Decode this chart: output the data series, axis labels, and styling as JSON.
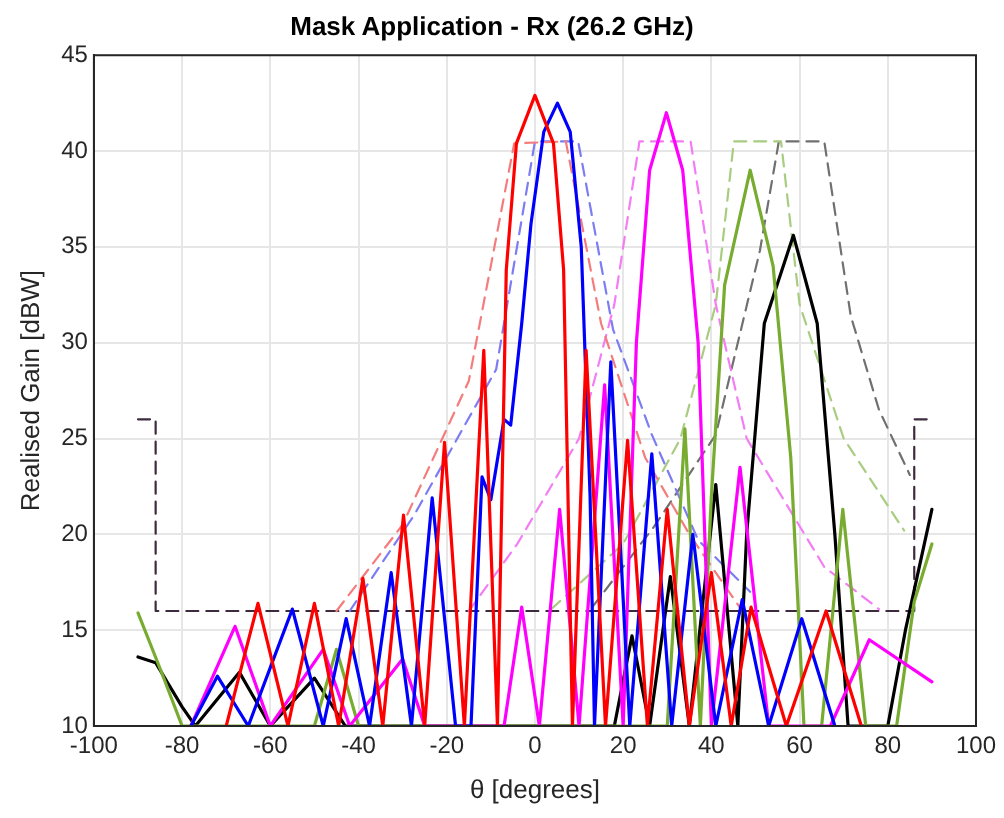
{
  "chart_data": {
    "type": "line",
    "title": "Mask Application - Rx (26.2 GHz)",
    "xlabel": "θ [degrees]",
    "ylabel": "Realised Gain [dBW]",
    "xlim": [
      -100,
      100
    ],
    "xticks": [
      -100,
      -80,
      -60,
      -40,
      -20,
      0,
      20,
      40,
      60,
      80,
      100
    ],
    "ylim": [
      10,
      45
    ],
    "yticks": [
      10,
      15,
      20,
      25,
      30,
      35,
      40,
      45
    ],
    "grid": true,
    "legend": false,
    "marker": "none",
    "series": [
      {
        "color": "#ff0000",
        "line_style": "solid",
        "x": [
          -70,
          -62.8,
          -56,
          -50,
          -44.5,
          -39,
          -34.5,
          -29.8,
          -25,
          -20.5,
          -16,
          -11.6,
          -8.5,
          -6.5,
          -4.2,
          0,
          4.2,
          6.5,
          8.5,
          11.6,
          16,
          21,
          25.5,
          30,
          35,
          40,
          44.5,
          49,
          57,
          66,
          74
        ],
        "values": [
          10,
          16.4,
          10,
          16.4,
          10,
          17.7,
          10,
          21,
          10,
          24.8,
          10,
          29.6,
          10,
          33.8,
          40.4,
          42.9,
          40.4,
          33.8,
          10,
          29.6,
          10,
          24.9,
          10,
          21.3,
          10,
          18,
          10,
          16.2,
          10,
          16,
          10
        ]
      },
      {
        "color": "#0000ff",
        "line_style": "solid",
        "x": [
          -78,
          -72,
          -65,
          -55,
          -48,
          -42.8,
          -37.5,
          -32.6,
          -28,
          -23.3,
          -18,
          -14.5,
          -12,
          -10,
          -7,
          -5.5,
          -3,
          -0.9,
          2,
          5.1,
          8,
          10.5,
          12.5,
          13.5,
          17.2,
          21.5,
          26.5,
          31,
          35.8,
          41,
          47,
          53,
          60.5,
          68
        ],
        "values": [
          10,
          12.6,
          10,
          16.1,
          10,
          15.6,
          10,
          18,
          10,
          21.9,
          10,
          10,
          23,
          21.8,
          26,
          25.7,
          31,
          36.2,
          41,
          42.5,
          41,
          35,
          22,
          10,
          29,
          10,
          24.2,
          10,
          20,
          10,
          16.6,
          10,
          15.6,
          10
        ]
      },
      {
        "color": "#ff00ff",
        "line_style": "solid",
        "x": [
          -78,
          -68,
          -60,
          -48,
          -42,
          -30,
          -25,
          -7,
          -3,
          1,
          5.6,
          10,
          15.8,
          20,
          23,
          26,
          29.8,
          33.5,
          37,
          40,
          46.5,
          53,
          67,
          75.8,
          90
        ],
        "values": [
          10,
          15.2,
          10,
          14,
          10,
          13.5,
          10,
          10,
          16.2,
          10,
          21.3,
          10,
          27.8,
          10,
          30,
          39,
          42,
          39,
          30,
          10,
          23.5,
          10,
          10,
          14.5,
          12.3
        ]
      },
      {
        "color": "#77ac30",
        "line_style": "solid",
        "x": [
          -90,
          -85,
          -80,
          -50,
          -45,
          -40,
          30,
          34,
          37.5,
          40,
          43,
          48.8,
          54,
          58,
          61,
          65,
          69.8,
          75,
          82,
          86,
          90
        ],
        "values": [
          15.9,
          13,
          10,
          10,
          14,
          10,
          10,
          25.5,
          10,
          22,
          33,
          39,
          34,
          24,
          10,
          10,
          21.3,
          10,
          10,
          16.5,
          19.5
        ]
      },
      {
        "color": "#000000",
        "line_style": "solid",
        "x": [
          -90,
          -86,
          -80,
          -77,
          -67,
          -60,
          -50,
          -43,
          18,
          22,
          26,
          30.7,
          35,
          41,
          46,
          48,
          52,
          58.6,
          64,
          68,
          71,
          80,
          84,
          90
        ],
        "values": [
          13.6,
          13.3,
          11,
          10,
          12.8,
          10,
          12.5,
          10,
          10,
          14.7,
          10,
          17.8,
          10,
          22.6,
          10,
          20,
          31,
          35.6,
          31,
          20,
          10,
          10,
          15,
          21.3
        ]
      },
      {
        "color": "#f47c7c",
        "line_style": "dashed",
        "x": [
          -45,
          -30,
          -15,
          -4.7,
          7,
          15,
          25,
          35,
          47
        ],
        "values": [
          16,
          20.5,
          28,
          40.4,
          40.5,
          31,
          24,
          20,
          16
        ]
      },
      {
        "color": "#7c7cf4",
        "line_style": "dashed",
        "x": [
          -42,
          -27.4,
          -8.8,
          0,
          9.8,
          17.7,
          26.5,
          37,
          48.8
        ],
        "values": [
          16,
          21,
          28.6,
          40.5,
          40.5,
          30.7,
          25.2,
          19.7,
          17
        ]
      },
      {
        "color": "#f47cf4",
        "line_style": "dashed",
        "x": [
          -15,
          -4,
          10,
          18,
          23.7,
          35.3,
          41,
          48,
          65.6,
          78
        ],
        "values": [
          16,
          19.5,
          25,
          32,
          40.5,
          40.5,
          32,
          25,
          18.3,
          16.1
        ]
      },
      {
        "color": "#a8cc80",
        "line_style": "dashed",
        "x": [
          3.7,
          20,
          33,
          41,
          45.1,
          55.8,
          60,
          70,
          83.7
        ],
        "values": [
          16.1,
          19.5,
          25,
          32,
          40.5,
          40.5,
          32,
          25,
          20.2
        ]
      },
      {
        "color": "#707070",
        "line_style": "dashed",
        "x": [
          13,
          27,
          41,
          51,
          55.3,
          65.6,
          71.6,
          78,
          85
        ],
        "values": [
          16.2,
          20.4,
          25.2,
          34.8,
          40.5,
          40.5,
          31.4,
          26.5,
          23.1
        ]
      },
      {
        "color": "#3d2a3d",
        "line_style": "dashed",
        "x": [
          -90,
          -86,
          -86,
          86,
          86,
          90
        ],
        "values": [
          26,
          26,
          16,
          16,
          26,
          26
        ]
      }
    ]
  }
}
